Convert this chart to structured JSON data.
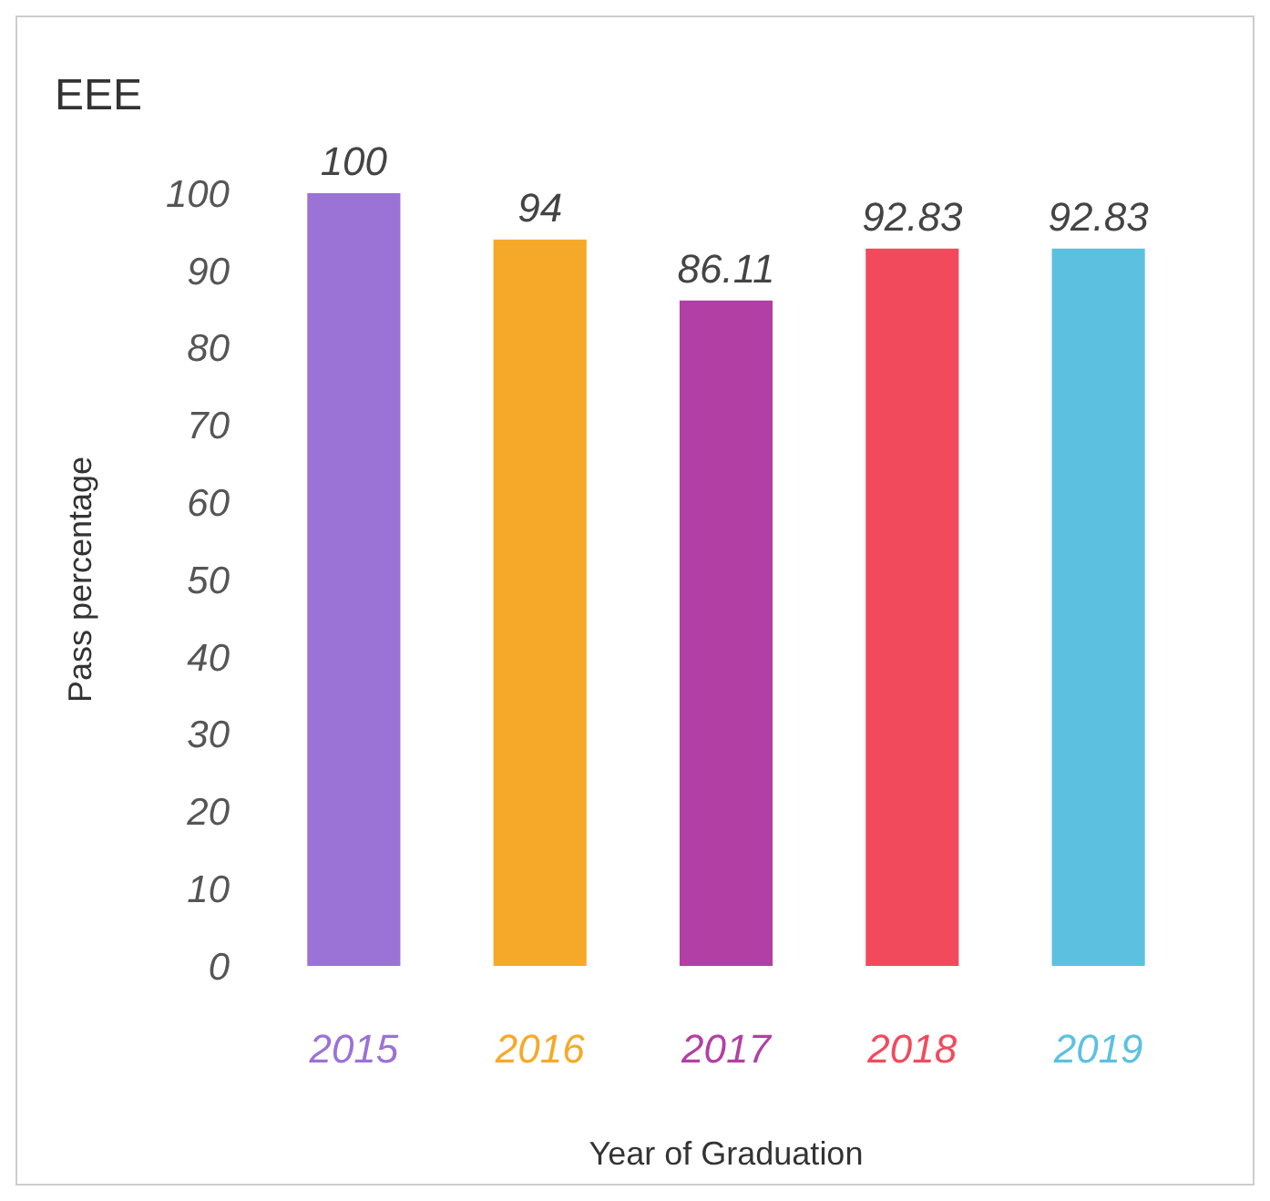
{
  "chart_data": {
    "type": "bar",
    "title": "EEE",
    "xlabel": "Year of Graduation",
    "ylabel": "Pass percentage",
    "categories": [
      "2015",
      "2016",
      "2017",
      "2018",
      "2019"
    ],
    "values": [
      100,
      94,
      86.11,
      92.83,
      92.83
    ],
    "colors": [
      "#9b72d6",
      "#f6a928",
      "#b23fa4",
      "#f24a5d",
      "#5cc1e0"
    ],
    "ylim": [
      0,
      100
    ],
    "yticks": [
      0,
      10,
      20,
      30,
      40,
      50,
      60,
      70,
      80,
      90,
      100
    ],
    "data_labels": true
  }
}
